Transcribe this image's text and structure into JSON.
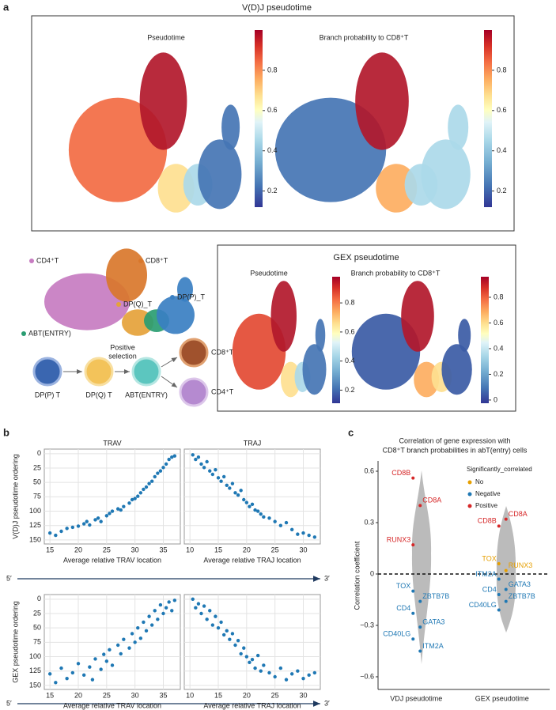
{
  "panel_labels": [
    "a",
    "b",
    "c"
  ],
  "vdj_panel": {
    "title": "V(D)J pseudotime",
    "umaps": [
      {
        "title": "Pseudotime",
        "colorbar": {
          "clim": [
            0.12,
            1.0
          ],
          "ticks": [
            0.2,
            0.4,
            0.6,
            0.8
          ]
        }
      },
      {
        "title": "Branch probability to CD8⁺T",
        "colorbar": {
          "clim": [
            0.12,
            1.0
          ],
          "ticks": [
            0.2,
            0.4,
            0.6,
            0.8
          ]
        }
      }
    ]
  },
  "gex_panel": {
    "title": "GEX pseudotime",
    "umaps": [
      {
        "title": "Pseudotime",
        "colorbar": {
          "clim": [
            0.11,
            0.98
          ],
          "ticks": [
            0.2,
            0.4,
            0.6,
            0.8
          ]
        }
      },
      {
        "title": "Branch probability to CD8⁺T",
        "colorbar": {
          "clim": [
            -0.025,
            0.96
          ],
          "ticks": [
            0,
            0.2,
            0.4,
            0.6,
            0.8
          ]
        }
      }
    ]
  },
  "cell_type_map": {
    "labels": [
      "CD4⁺T",
      "CD8⁺T",
      "DP(Q)_T",
      "DP(P)_T",
      "ABT(ENTRY)"
    ]
  },
  "lineage": {
    "stages": [
      "DP(P) T",
      "DP(Q) T",
      "ABT(ENTRY)",
      "CD8⁺T",
      "CD4⁺T"
    ],
    "annotation": [
      "Positive",
      "selection"
    ]
  },
  "gradient_arrow": {
    "start": "5′",
    "end": "3′"
  },
  "chart_data": [
    {
      "type": "scatter",
      "title": "TRAV",
      "xlabel": "Average relative TRAV location",
      "ylabel": "V(D)J pseudotime ordering",
      "color": "#1f78b4",
      "grid": true,
      "ytick_labels": true,
      "xlim": [
        14,
        38
      ],
      "xticks": [
        15,
        20,
        25,
        30,
        35
      ],
      "ylim": [
        157,
        -8
      ],
      "yticks": [
        0,
        25,
        50,
        75,
        100,
        125,
        150
      ],
      "x": [
        15,
        16,
        17,
        18,
        19,
        20,
        21,
        21.5,
        22,
        23,
        23.5,
        24,
        25,
        25.5,
        26,
        27,
        27.5,
        28,
        29,
        29.5,
        30,
        30.5,
        31,
        31.5,
        32,
        32.5,
        33,
        33.5,
        34,
        34.5,
        35,
        35.5,
        36,
        36.5,
        37
      ],
      "values": [
        138,
        142,
        135,
        130,
        128,
        126,
        122,
        118,
        124,
        115,
        112,
        118,
        108,
        104,
        100,
        96,
        98,
        92,
        86,
        80,
        78,
        74,
        68,
        62,
        58,
        52,
        48,
        40,
        34,
        30,
        24,
        18,
        10,
        6,
        4
      ]
    },
    {
      "type": "scatter",
      "title": "TRAJ",
      "xlabel": "Average relative TRAJ location",
      "color": "#1f78b4",
      "grid": true,
      "ytick_labels": false,
      "xlim": [
        9,
        33
      ],
      "xticks": [
        10,
        15,
        20,
        25,
        30
      ],
      "ylim": [
        157,
        -8
      ],
      "yticks": [
        0,
        25,
        50,
        75,
        100,
        125,
        150
      ],
      "x": [
        10.5,
        11,
        11.5,
        12,
        12.5,
        13,
        13.5,
        14,
        14.5,
        15,
        15.5,
        16,
        16.5,
        17,
        17.5,
        18,
        18.5,
        19,
        19.5,
        20,
        20.5,
        21,
        21.5,
        22,
        22.5,
        23,
        24,
        25,
        26,
        27,
        28,
        29,
        30,
        31,
        32
      ],
      "values": [
        2,
        10,
        6,
        18,
        24,
        14,
        30,
        36,
        28,
        42,
        48,
        40,
        55,
        60,
        52,
        68,
        72,
        64,
        80,
        85,
        92,
        88,
        98,
        100,
        105,
        110,
        112,
        118,
        125,
        120,
        132,
        140,
        138,
        142,
        145
      ]
    },
    {
      "type": "scatter",
      "xlabel": "Average relative TRAV location",
      "ylabel": "GEX pseudotime ordering",
      "color": "#1f78b4",
      "grid": true,
      "ytick_labels": true,
      "xlim": [
        14,
        38
      ],
      "xticks": [
        15,
        20,
        25,
        30,
        35
      ],
      "ylim": [
        157,
        -8
      ],
      "yticks": [
        0,
        25,
        50,
        75,
        100,
        125,
        150
      ],
      "x": [
        15,
        16,
        17,
        18,
        19,
        20,
        21,
        22,
        22.5,
        23,
        24,
        24.5,
        25,
        25.5,
        26,
        27,
        27.5,
        28,
        29,
        29.5,
        30,
        30.5,
        31,
        31.5,
        32,
        32.5,
        33,
        33.5,
        34,
        34.5,
        35,
        35.5,
        36,
        36.5,
        37
      ],
      "values": [
        130,
        145,
        120,
        138,
        128,
        112,
        132,
        118,
        140,
        104,
        122,
        96,
        108,
        88,
        115,
        80,
        95,
        70,
        85,
        60,
        75,
        50,
        68,
        40,
        55,
        30,
        45,
        20,
        35,
        10,
        25,
        15,
        5,
        20,
        2
      ]
    },
    {
      "type": "scatter",
      "xlabel": "Average relative TRAJ location",
      "color": "#1f78b4",
      "grid": true,
      "ytick_labels": false,
      "xlim": [
        9,
        33
      ],
      "xticks": [
        10,
        15,
        20,
        25,
        30
      ],
      "ylim": [
        157,
        -8
      ],
      "yticks": [
        0,
        25,
        50,
        75,
        100,
        125,
        150
      ],
      "x": [
        10.5,
        11,
        11.5,
        12,
        12.5,
        13,
        13.5,
        14,
        14.5,
        15,
        15.5,
        16,
        16.5,
        17,
        17.5,
        18,
        18.5,
        19,
        19.5,
        20,
        20.5,
        21,
        21.5,
        22,
        22.5,
        23,
        24,
        25,
        26,
        27,
        28,
        29,
        30,
        31,
        32
      ],
      "values": [
        0,
        15,
        8,
        25,
        12,
        35,
        20,
        45,
        30,
        50,
        40,
        62,
        55,
        70,
        60,
        80,
        72,
        95,
        85,
        100,
        110,
        105,
        120,
        98,
        125,
        115,
        128,
        135,
        120,
        140,
        130,
        125,
        138,
        132,
        128
      ]
    },
    {
      "type": "strip",
      "title": [
        "Correlation of gene expression with",
        "CD8⁺T branch probabilities in abT(entry) cells"
      ],
      "ylabel": "Correlation coefficient",
      "categories": [
        "VDJ pseudotime",
        "GEX pseudotime"
      ],
      "ylim": [
        -0.674,
        0.66
      ],
      "yticks": [
        {
          "value": -0.6,
          "label": "−0.6"
        },
        {
          "value": -0.3,
          "label": "−0.3"
        },
        0,
        0.3,
        0.6
      ],
      "hline": 0,
      "legend": {
        "title": "Significantly_correlated",
        "position": "upper right"
      },
      "series": [
        {
          "name": "No",
          "color": "#e69f00",
          "x": [
            "GEX pseudotime",
            "GEX pseudotime"
          ],
          "values": [
            0.06,
            0.02
          ],
          "labels": [
            "TOX",
            "RUNX3"
          ]
        },
        {
          "name": "Negative",
          "color": "#1f78b4",
          "x": [
            "VDJ pseudotime",
            "VDJ pseudotime",
            "VDJ pseudotime",
            "VDJ pseudotime",
            "VDJ pseudotime",
            "VDJ pseudotime",
            "GEX pseudotime",
            "GEX pseudotime",
            "GEX pseudotime",
            "GEX pseudotime",
            "GEX pseudotime"
          ],
          "values": [
            -0.1,
            -0.16,
            -0.23,
            -0.31,
            -0.38,
            -0.45,
            -0.03,
            -0.09,
            -0.12,
            -0.16,
            -0.21
          ],
          "labels": [
            "TOX",
            "ZBTB7B",
            "CD4",
            "GATA3",
            "CD40LG",
            "ITM2A",
            "ITM2A",
            "GATA3",
            "CD4",
            "ZBTB7B",
            "CD40LG"
          ]
        },
        {
          "name": "Positive",
          "color": "#d62728",
          "x": [
            "VDJ pseudotime",
            "VDJ pseudotime",
            "VDJ pseudotime",
            "GEX pseudotime",
            "GEX pseudotime"
          ],
          "values": [
            0.56,
            0.4,
            0.17,
            0.32,
            0.28
          ],
          "labels": [
            "CD8B",
            "CD8A",
            "RUNX3",
            "CD8A",
            "CD8B"
          ]
        }
      ]
    }
  ]
}
